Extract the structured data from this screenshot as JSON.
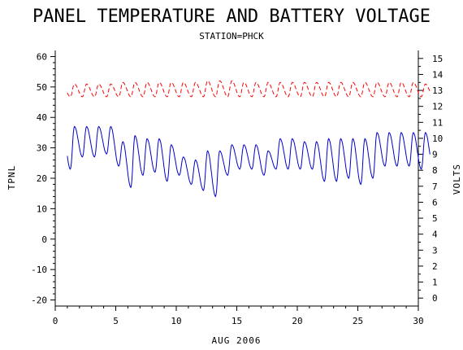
{
  "chart_data": {
    "type": "line",
    "title": "PANEL TEMPERATURE AND BATTERY VOLTAGE",
    "subtitle": "STATION=PHCK",
    "xlabel": "AUG 2006",
    "ylabel_left": "TPNL",
    "ylabel_right": "VOLTS",
    "xlim": [
      0,
      30
    ],
    "ylim_left": [
      -22,
      62
    ],
    "ylim_right": [
      -0.5,
      15.5
    ],
    "x_ticks": [
      0,
      5,
      10,
      15,
      20,
      25,
      30
    ],
    "x_tick_labels": [
      "0",
      "5",
      "10",
      "15",
      "20",
      "25",
      "30"
    ],
    "y_left_ticks": [
      -20,
      -10,
      0,
      10,
      20,
      30,
      40,
      50,
      60
    ],
    "y_left_tick_labels": [
      "-20",
      "-10",
      "0",
      "10",
      "20",
      "30",
      "40",
      "50",
      "60"
    ],
    "y_right_ticks": [
      0,
      1,
      2,
      3,
      4,
      5,
      6,
      7,
      8,
      9,
      10,
      11,
      12,
      13,
      14,
      15
    ],
    "y_right_tick_labels": [
      "0",
      "1",
      "2",
      "3",
      "4",
      "5",
      "6",
      "7",
      "8",
      "9",
      "10",
      "11",
      "12",
      "13",
      "14",
      "15"
    ],
    "grid": false,
    "series": [
      {
        "axis": "left",
        "color": "#0000cc",
        "style": "solid",
        "daily": [
          {
            "day": 1.0,
            "min": 23,
            "max": 37
          },
          {
            "day": 2.0,
            "min": 27,
            "max": 37
          },
          {
            "day": 3.0,
            "min": 27,
            "max": 37
          },
          {
            "day": 4.0,
            "min": 28,
            "max": 37
          },
          {
            "day": 5.0,
            "min": 24,
            "max": 32
          },
          {
            "day": 6.0,
            "min": 17,
            "max": 34
          },
          {
            "day": 7.0,
            "min": 21,
            "max": 33
          },
          {
            "day": 8.0,
            "min": 22,
            "max": 33
          },
          {
            "day": 9.0,
            "min": 19,
            "max": 31
          },
          {
            "day": 10.0,
            "min": 21,
            "max": 27
          },
          {
            "day": 11.0,
            "min": 18,
            "max": 26
          },
          {
            "day": 12.0,
            "min": 16,
            "max": 29
          },
          {
            "day": 13.0,
            "min": 14,
            "max": 29
          },
          {
            "day": 14.0,
            "min": 21,
            "max": 31
          },
          {
            "day": 15.0,
            "min": 23,
            "max": 31
          },
          {
            "day": 16.0,
            "min": 23,
            "max": 31
          },
          {
            "day": 17.0,
            "min": 21,
            "max": 29
          },
          {
            "day": 18.0,
            "min": 23,
            "max": 33
          },
          {
            "day": 19.0,
            "min": 23,
            "max": 33
          },
          {
            "day": 20.0,
            "min": 23,
            "max": 32
          },
          {
            "day": 21.0,
            "min": 23,
            "max": 32
          },
          {
            "day": 22.0,
            "min": 19,
            "max": 33
          },
          {
            "day": 23.0,
            "min": 19,
            "max": 33
          },
          {
            "day": 24.0,
            "min": 20,
            "max": 33
          },
          {
            "day": 25.0,
            "min": 18,
            "max": 33
          },
          {
            "day": 26.0,
            "min": 20,
            "max": 35
          },
          {
            "day": 27.0,
            "min": 24,
            "max": 35
          },
          {
            "day": 28.0,
            "min": 24,
            "max": 35
          },
          {
            "day": 29.0,
            "min": 24,
            "max": 35
          },
          {
            "day": 30.0,
            "min": 23,
            "max": 35
          }
        ]
      },
      {
        "axis": "right",
        "color": "#ff0000",
        "style": "dashed",
        "daily": [
          {
            "day": 1.0,
            "min": 12.6,
            "max": 13.4
          },
          {
            "day": 2.0,
            "min": 12.6,
            "max": 13.4
          },
          {
            "day": 3.0,
            "min": 12.6,
            "max": 13.4
          },
          {
            "day": 4.0,
            "min": 12.6,
            "max": 13.4
          },
          {
            "day": 5.0,
            "min": 12.6,
            "max": 13.5
          },
          {
            "day": 6.0,
            "min": 12.6,
            "max": 13.5
          },
          {
            "day": 7.0,
            "min": 12.6,
            "max": 13.5
          },
          {
            "day": 8.0,
            "min": 12.6,
            "max": 13.5
          },
          {
            "day": 9.0,
            "min": 12.6,
            "max": 13.5
          },
          {
            "day": 10.0,
            "min": 12.6,
            "max": 13.5
          },
          {
            "day": 11.0,
            "min": 12.6,
            "max": 13.5
          },
          {
            "day": 12.0,
            "min": 12.6,
            "max": 13.6
          },
          {
            "day": 13.0,
            "min": 12.6,
            "max": 13.6
          },
          {
            "day": 14.0,
            "min": 12.6,
            "max": 13.6
          },
          {
            "day": 15.0,
            "min": 12.6,
            "max": 13.5
          },
          {
            "day": 16.0,
            "min": 12.6,
            "max": 13.5
          },
          {
            "day": 17.0,
            "min": 12.6,
            "max": 13.5
          },
          {
            "day": 18.0,
            "min": 12.6,
            "max": 13.5
          },
          {
            "day": 19.0,
            "min": 12.6,
            "max": 13.5
          },
          {
            "day": 20.0,
            "min": 12.6,
            "max": 13.5
          },
          {
            "day": 21.0,
            "min": 12.6,
            "max": 13.5
          },
          {
            "day": 22.0,
            "min": 12.6,
            "max": 13.5
          },
          {
            "day": 23.0,
            "min": 12.6,
            "max": 13.5
          },
          {
            "day": 24.0,
            "min": 12.6,
            "max": 13.5
          },
          {
            "day": 25.0,
            "min": 12.6,
            "max": 13.5
          },
          {
            "day": 26.0,
            "min": 12.6,
            "max": 13.5
          },
          {
            "day": 27.0,
            "min": 12.6,
            "max": 13.5
          },
          {
            "day": 28.0,
            "min": 12.6,
            "max": 13.5
          },
          {
            "day": 29.0,
            "min": 12.6,
            "max": 13.5
          },
          {
            "day": 30.0,
            "min": 12.6,
            "max": 13.4
          }
        ]
      }
    ]
  }
}
